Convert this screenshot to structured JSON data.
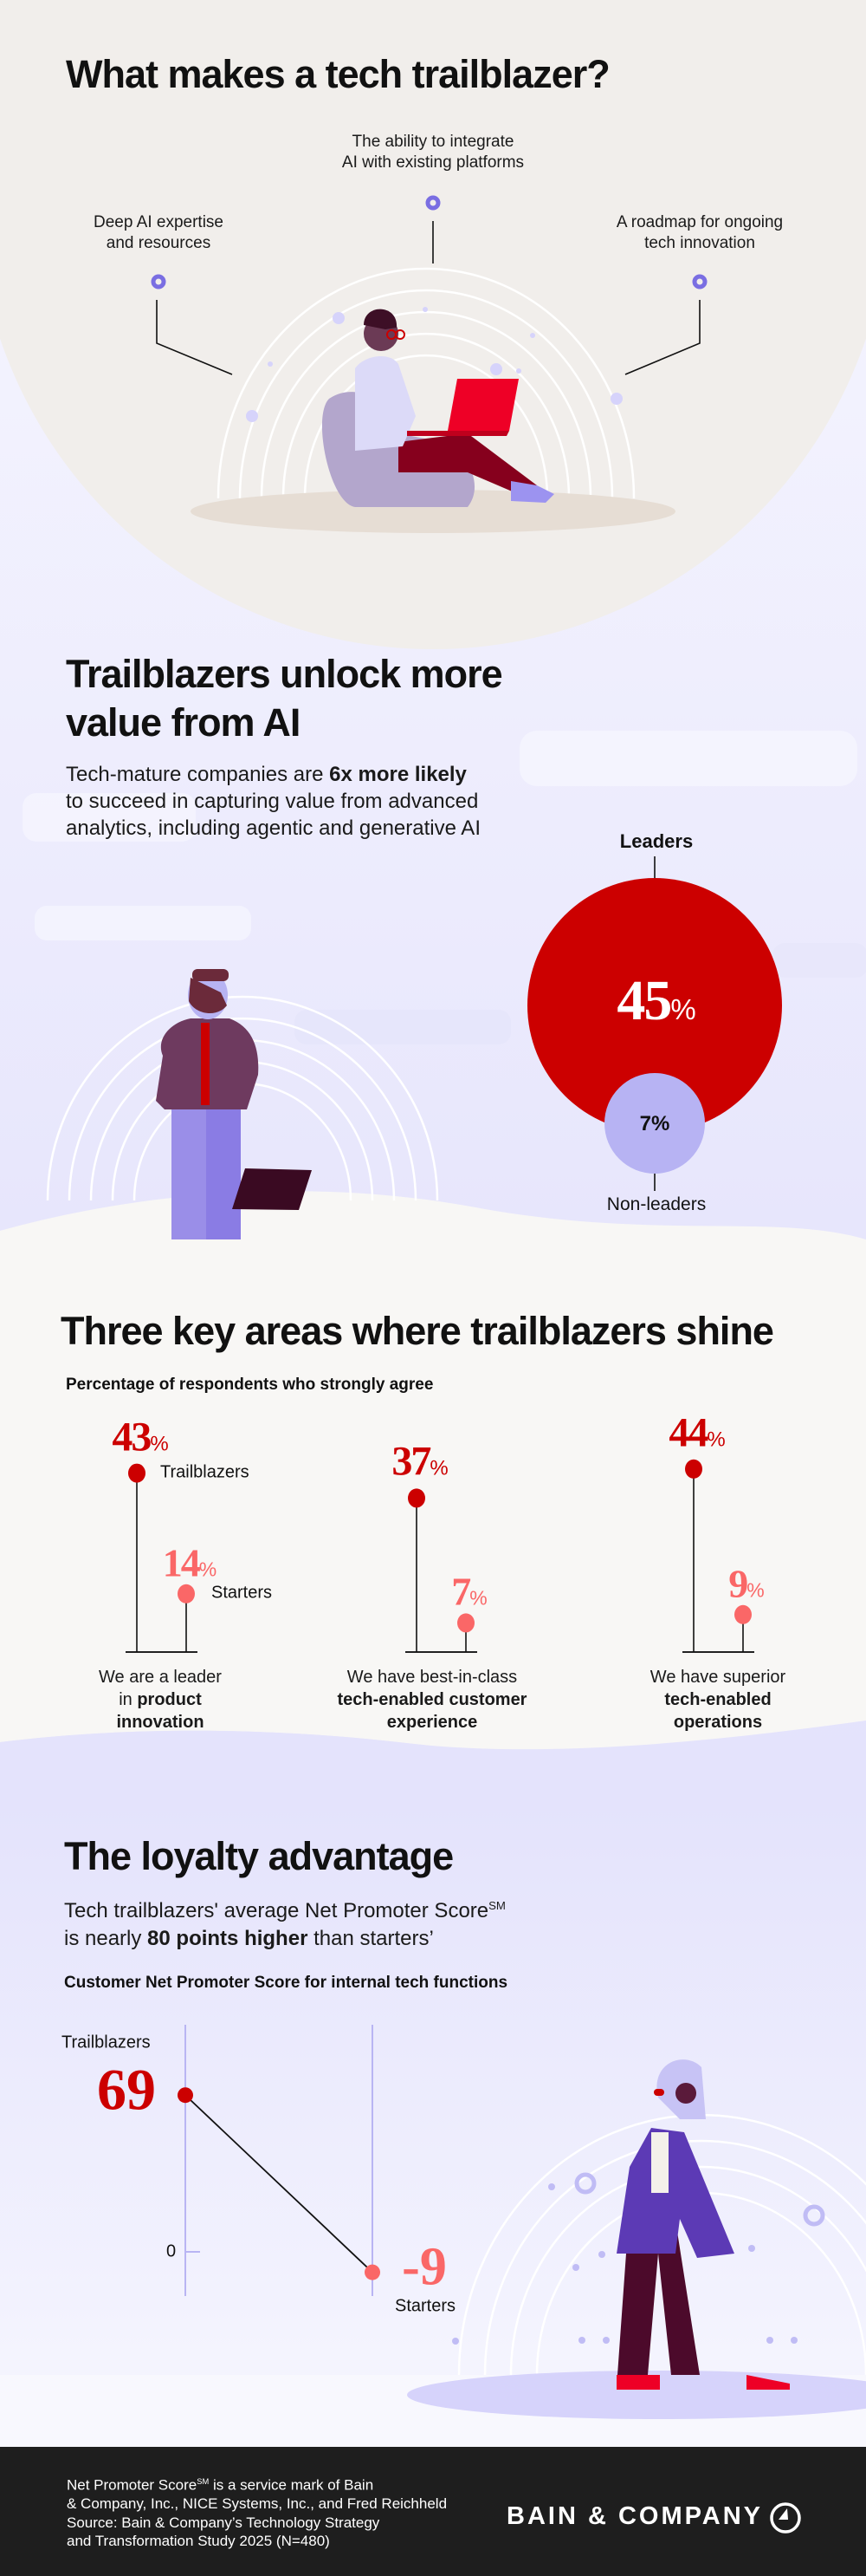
{
  "section1": {
    "title": "What makes a tech trailblazer?",
    "points": [
      {
        "line1": "Deep AI expertise",
        "line2": "and resources"
      },
      {
        "line1": "The ability to integrate",
        "line2": "AI with existing platforms"
      },
      {
        "line1": "A roadmap for ongoing",
        "line2": "tech innovation"
      }
    ]
  },
  "section2": {
    "title_line1": "Trailblazers unlock more",
    "title_line2": "value from AI",
    "lead_pre": "Tech-mature companies are ",
    "lead_bold": "6x more likely",
    "lead_line2": "to succeed in capturing value from advanced",
    "lead_line3": "analytics, including agentic and generative AI",
    "leaders_label": "Leaders",
    "nonleaders_label": "Non-leaders",
    "percent_sign": "%"
  },
  "section3": {
    "title": "Three key areas where trailblazers shine",
    "subtitle": "Percentage of respondents who strongly agree",
    "trailblazers_label": "Trailblazers",
    "starters_label": "Starters",
    "captions": [
      {
        "line1": "We are a leader",
        "line2_pre": "in ",
        "line2_bold": "product",
        "line3_bold": "innovation"
      },
      {
        "line1": "We have best-in-class",
        "line2_pre": "",
        "line2_bold": "tech-enabled customer",
        "line3_bold": "experience"
      },
      {
        "line1": "We have superior",
        "line2_pre": "",
        "line2_bold": "tech-enabled",
        "line3_bold": "operations"
      }
    ]
  },
  "section4": {
    "title": "The loyalty advantage",
    "lead_line1": "Tech trailblazers' average Net Promoter Score",
    "lead_sup": "SM",
    "lead_pre": "is nearly ",
    "lead_bold": "80 points higher",
    "lead_post": " than starters’",
    "chart_title": "Customer Net Promoter Score for internal tech functions",
    "zero_label": "0",
    "trailblazers_label": "Trailblazers",
    "starters_label": "Starters"
  },
  "footer": {
    "line1_pre": "Net Promoter Score",
    "line1_sup": "SM",
    "line1_post": " is a service mark of Bain",
    "line2": "& Company, Inc., NICE Systems, Inc., and Fred Reichheld",
    "line3": "Source: Bain & Company’s Technology Strategy",
    "line4": "and Transformation Study 2025 (N=480)",
    "logo_text": "BAIN & COMPANY"
  },
  "colors": {
    "trailblazer_red": "#cc0000",
    "starter_pink": "#fa6767",
    "nonleader_lavender": "#b7b3f3",
    "accent_purple": "#7a6ee2",
    "beige": "#f1eeeb",
    "footer_bg": "#1e1e1e"
  },
  "chart_data": [
    {
      "type": "bubble",
      "categories": [
        "Leaders",
        "Non-leaders"
      ],
      "values": [
        45,
        7
      ],
      "unit": "%"
    },
    {
      "type": "lollipop",
      "title": "Percentage of respondents who strongly agree",
      "categories": [
        "We are a leader in product innovation",
        "We have best-in-class tech-enabled customer experience",
        "We have superior tech-enabled operations"
      ],
      "series": [
        {
          "name": "Trailblazers",
          "values": [
            43,
            37,
            44
          ]
        },
        {
          "name": "Starters",
          "values": [
            14,
            7,
            9
          ]
        }
      ],
      "unit": "%"
    },
    {
      "type": "line",
      "title": "Customer Net Promoter Score for internal tech functions",
      "categories": [
        "Trailblazers",
        "Starters"
      ],
      "values": [
        69,
        -9
      ],
      "y_ticks": [
        0
      ]
    }
  ]
}
